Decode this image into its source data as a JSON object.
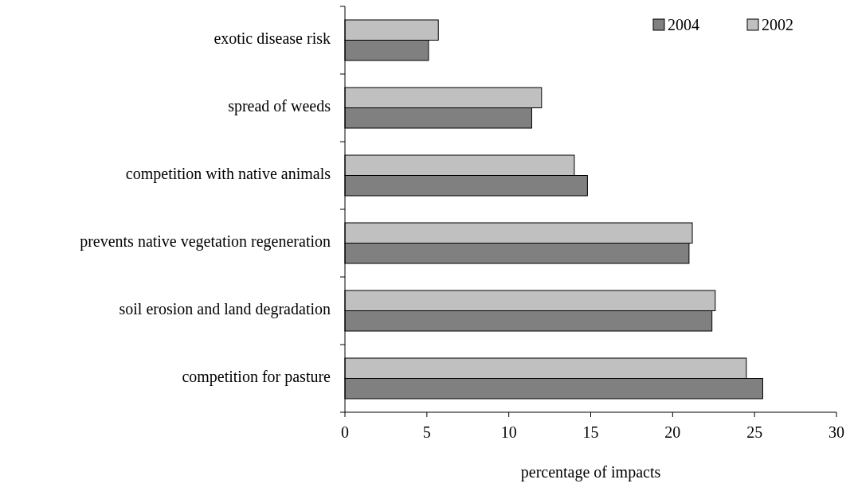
{
  "chart_data": {
    "type": "bar",
    "orientation": "horizontal",
    "xlabel": "percentage of impacts",
    "categories": [
      "exotic disease risk",
      "spread of weeds",
      "competition with native animals",
      "prevents native vegetation regeneration",
      "soil erosion and land degradation",
      "competition for pasture"
    ],
    "series": [
      {
        "name": "2004",
        "color": "#808080",
        "values": [
          5.1,
          11.4,
          14.8,
          21.0,
          22.4,
          25.5
        ]
      },
      {
        "name": "2002",
        "color": "#c0c0c0",
        "values": [
          5.7,
          12.0,
          14.0,
          21.2,
          22.6,
          24.5
        ]
      }
    ],
    "xlim": [
      0,
      30
    ],
    "xticks": [
      0,
      5,
      10,
      15,
      20,
      25,
      30
    ],
    "grid": false,
    "legend": "top right"
  }
}
